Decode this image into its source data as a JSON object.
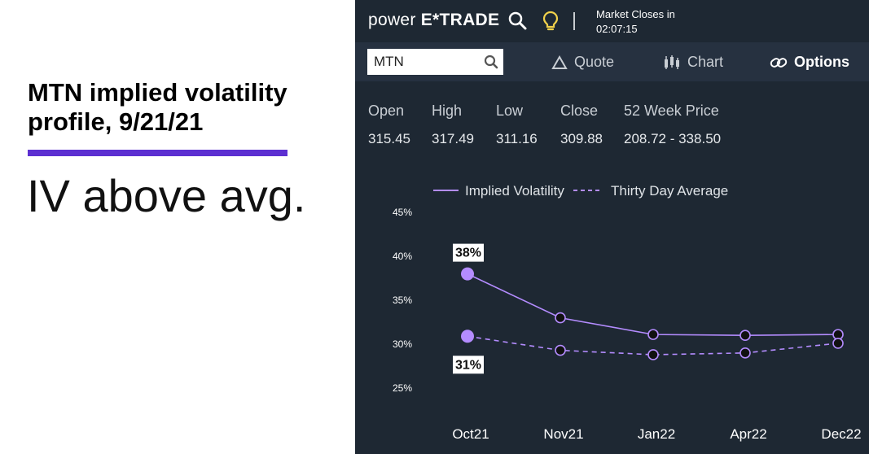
{
  "slide": {
    "headline": "MTN implied volatility profile, 9/21/21",
    "subhead": "IV above avg.",
    "accent_color": "#5c2fd1"
  },
  "app": {
    "brand_left": "power",
    "brand_right": "E*TRADE",
    "icons": [
      "search-icon",
      "lightbulb-icon"
    ],
    "market_label": "Market Closes in",
    "market_time": "02:07:15",
    "search": {
      "value": "MTN",
      "placeholder": ""
    },
    "tabs": [
      {
        "label": "Quote",
        "icon": "triangle-icon",
        "active": false
      },
      {
        "label": "Chart",
        "icon": "candlestick-icon",
        "active": false
      },
      {
        "label": "Options",
        "icon": "link-icon",
        "active": true
      }
    ],
    "quote": {
      "open_label": "Open",
      "open": "315.45",
      "high_label": "High",
      "high": "317.49",
      "low_label": "Low",
      "low": "311.16",
      "close_label": "Close",
      "close": "309.88",
      "range_label": "52 Week Price",
      "range": "208.72 - 338.50"
    },
    "colors": {
      "background": "#1e2833",
      "line": "#b48cff",
      "text": "#ffffff"
    }
  },
  "chart_data": {
    "type": "line",
    "categories": [
      "Oct21",
      "Nov21",
      "Jan22",
      "Apr22",
      "Dec22"
    ],
    "series": [
      {
        "name": "Implied Volatility",
        "values": [
          38,
          33,
          31.1,
          31,
          31.1
        ],
        "style": "solid"
      },
      {
        "name": "Thirty Day Average",
        "values": [
          30.9,
          29.3,
          28.8,
          29,
          30.1
        ],
        "style": "dashed"
      }
    ],
    "ylim": [
      25,
      45
    ],
    "yticks": [
      "45%",
      "40%",
      "35%",
      "30%",
      "25%"
    ],
    "yticks_values": [
      45,
      40,
      35,
      30,
      25
    ],
    "annotations": [
      {
        "series": 0,
        "index": 0,
        "text": "38%",
        "position": "above"
      },
      {
        "series": 1,
        "index": 0,
        "text": "31%",
        "position": "below"
      }
    ],
    "legend_placement": "top",
    "grid": false
  }
}
